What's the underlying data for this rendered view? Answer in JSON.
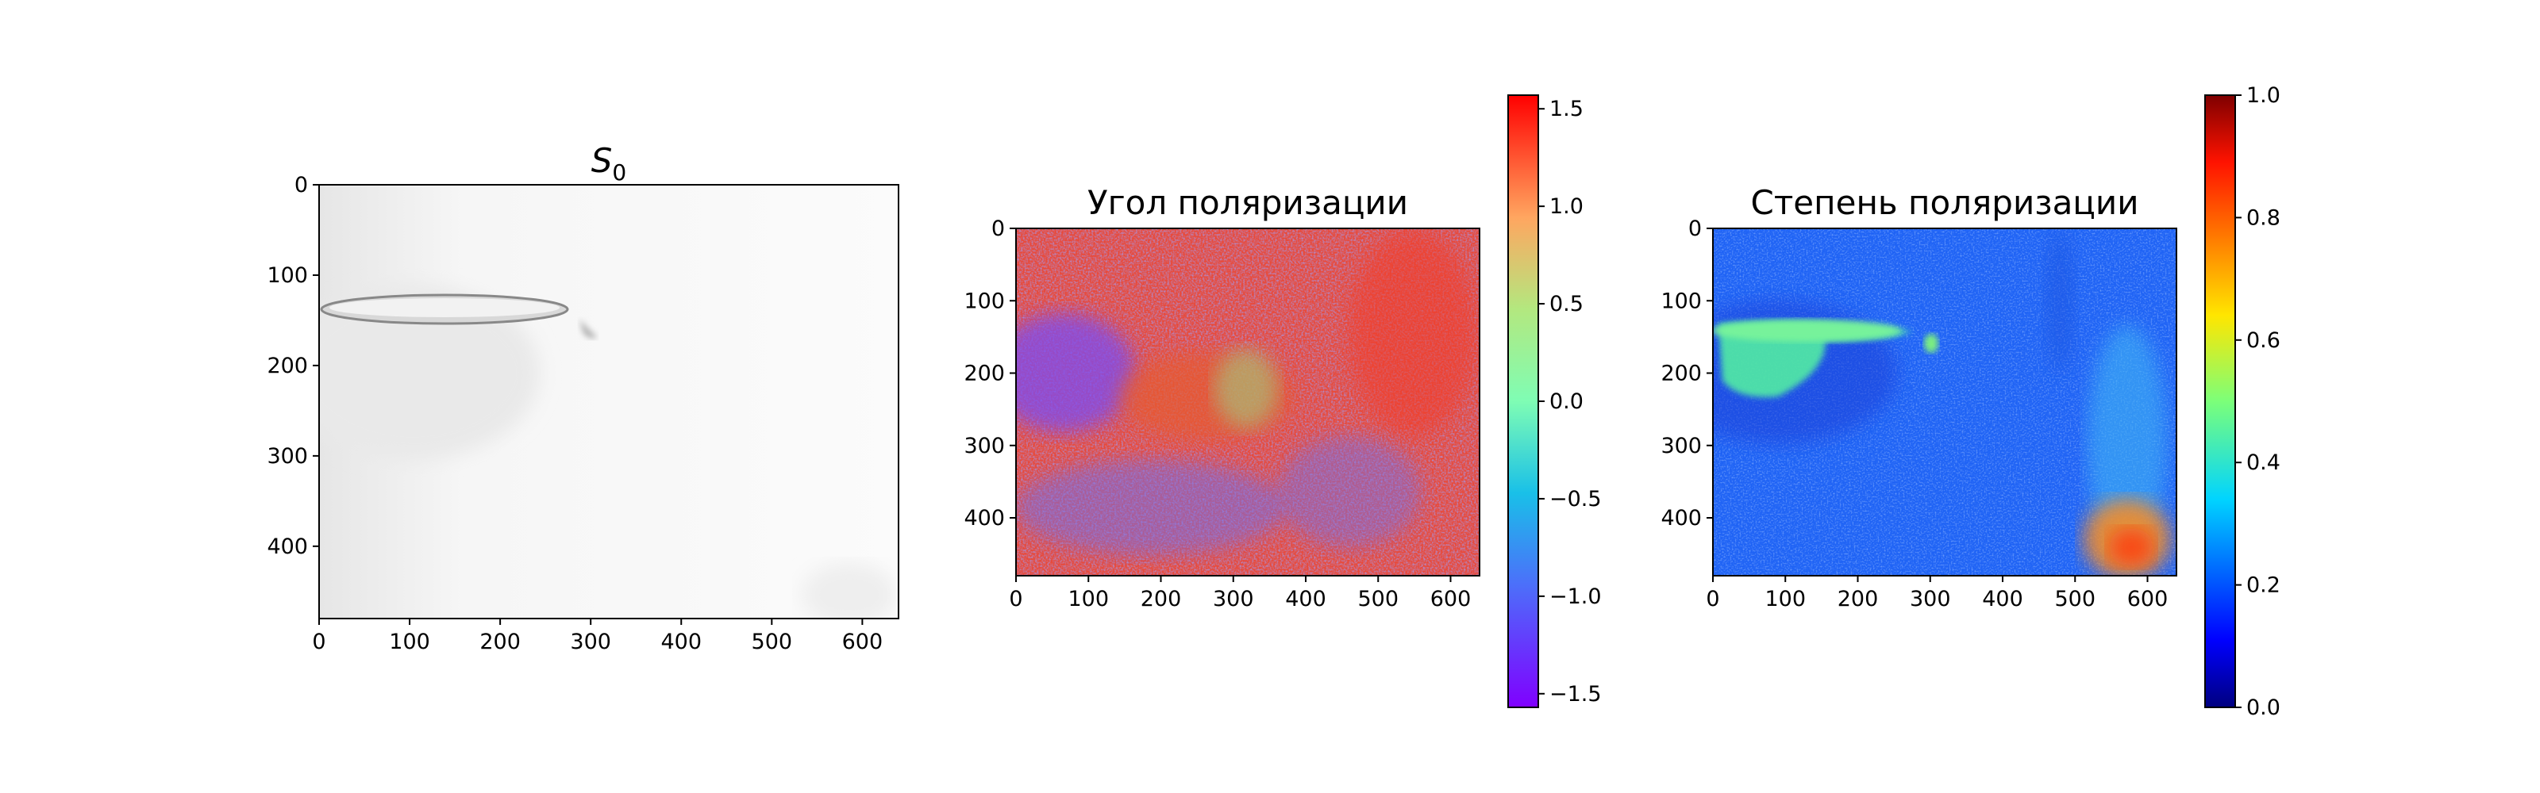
{
  "chart_data": [
    {
      "type": "heatmap",
      "title": "S",
      "title_subscript": "0",
      "colormap": "gray",
      "x_ticks": [
        "0",
        "100",
        "200",
        "300",
        "400",
        "500",
        "600"
      ],
      "y_ticks": [
        "0",
        "100",
        "200",
        "300",
        "400"
      ],
      "xlim": [
        0,
        640
      ],
      "ylim": [
        480,
        0
      ],
      "grid": false,
      "colorbar": false
    },
    {
      "type": "heatmap",
      "title": "Угол поляризации",
      "colormap": "rainbow",
      "x_ticks": [
        "0",
        "100",
        "200",
        "300",
        "400",
        "500",
        "600"
      ],
      "y_ticks": [
        "0",
        "100",
        "200",
        "300",
        "400"
      ],
      "xlim": [
        0,
        640
      ],
      "ylim": [
        480,
        0
      ],
      "grid": false,
      "colorbar": true,
      "colorbar_range": [
        -1.57,
        1.57
      ],
      "colorbar_ticks": [
        "1.5",
        "1.0",
        "0.5",
        "0.0",
        "−0.5",
        "−1.0",
        "−1.5"
      ]
    },
    {
      "type": "heatmap",
      "title": "Степень поляризации",
      "colormap": "jet",
      "x_ticks": [
        "0",
        "100",
        "200",
        "300",
        "400",
        "500",
        "600"
      ],
      "y_ticks": [
        "0",
        "100",
        "200",
        "300",
        "400"
      ],
      "xlim": [
        0,
        640
      ],
      "ylim": [
        480,
        0
      ],
      "grid": false,
      "colorbar": true,
      "colorbar_range": [
        0.0,
        1.0
      ],
      "colorbar_ticks": [
        "1.0",
        "0.8",
        "0.6",
        "0.4",
        "0.2",
        "0.0"
      ]
    }
  ]
}
